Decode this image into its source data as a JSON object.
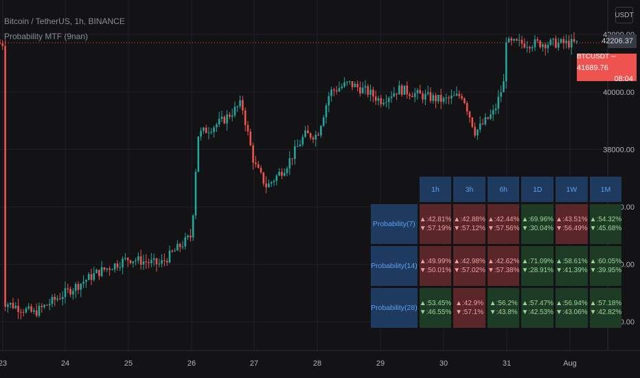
{
  "header": {
    "symbol_line": "Bitcoin / TetherUS, 1h, BINANCE",
    "indicator_line": "Probability MTF (9nan)"
  },
  "currency_button": "USDT",
  "price_tags": {
    "high": "42206.37",
    "symbol": "BTCUSDT",
    "last": "41689.76",
    "countdown": "08:04"
  },
  "colors": {
    "up": "#26a69a",
    "down": "#ef5350",
    "background": "#131316",
    "table_header": "#1e3a5f"
  },
  "table": {
    "timeframes": [
      "1h",
      "3h",
      "6h",
      "1D",
      "1W",
      "1M"
    ],
    "rows": [
      {
        "label": "Probability(7)",
        "cells": [
          {
            "up": "▲:42.81%",
            "down": "▼:57.19%",
            "tone": "red"
          },
          {
            "up": "▲:42.88%",
            "down": "▼:57.12%",
            "tone": "red"
          },
          {
            "up": "▲:42.44%",
            "down": "▼:57.56%",
            "tone": "red"
          },
          {
            "up": "▲:69.96%",
            "down": "▼:30.04%",
            "tone": "green"
          },
          {
            "up": "▲:43.51%",
            "down": "▼:56.49%",
            "tone": "red"
          },
          {
            "up": "▲:54.32%",
            "down": "▼:45.68%",
            "tone": "green"
          }
        ]
      },
      {
        "label": "Probability(14)",
        "cells": [
          {
            "up": "▲:49.99%",
            "down": "▼:50.01%",
            "tone": "red"
          },
          {
            "up": "▲:42.98%",
            "down": "▼:57.02%",
            "tone": "red"
          },
          {
            "up": "▲:42.62%",
            "down": "▼:57.38%",
            "tone": "red"
          },
          {
            "up": "▲:71.09%",
            "down": "▼:28.91%",
            "tone": "green"
          },
          {
            "up": "▲:58.61%",
            "down": "▼:41.39%",
            "tone": "green"
          },
          {
            "up": "▲:60.05%",
            "down": "▼:39.95%",
            "tone": "green"
          }
        ]
      },
      {
        "label": "Probability(28)",
        "cells": [
          {
            "up": "▲:53.45%",
            "down": "▼:46.55%",
            "tone": "green"
          },
          {
            "up": "▲:42.9%",
            "down": "▼:57.1%",
            "tone": "red"
          },
          {
            "up": "▲:56.2%",
            "down": "▼:43.8%",
            "tone": "green"
          },
          {
            "up": "▲:57.47%",
            "down": "▼:42.53%",
            "tone": "green"
          },
          {
            "up": "▲:56.94%",
            "down": "▼:43.06%",
            "tone": "green"
          },
          {
            "up": "▲:57.18%",
            "down": "▼:42.82%",
            "tone": "green"
          }
        ]
      }
    ]
  },
  "chart_data": {
    "type": "candlestick",
    "title": "Bitcoin / TetherUS, 1h, BINANCE",
    "xlabel": "",
    "ylabel": "",
    "x_ticks": [
      "23",
      "24",
      "25",
      "26",
      "27",
      "28",
      "29",
      "30",
      "31",
      "Aug"
    ],
    "y_ticks": [
      "42000.00",
      "40000.00",
      "38000.00",
      "36000.00",
      "34000.00",
      "32000.00"
    ],
    "ylim": [
      31000,
      43200
    ],
    "grid": true,
    "last_price": 41689.76,
    "high_line": 42206.37,
    "series": [
      {
        "name": "BTCUSDT",
        "close_path": [
          [
            "23",
            32700
          ],
          [
            "23.5",
            32300
          ],
          [
            "24",
            33000
          ],
          [
            "24.5",
            33700
          ],
          [
            "25",
            34200
          ],
          [
            "25.5",
            34000
          ],
          [
            "26",
            35000
          ],
          [
            "26.1",
            38500
          ],
          [
            "26.5",
            39000
          ],
          [
            "26.8",
            39600
          ],
          [
            "27",
            37500
          ],
          [
            "27.2",
            36700
          ],
          [
            "27.5",
            37400
          ],
          [
            "27.8",
            38500
          ],
          [
            "28",
            38500
          ],
          [
            "28.2",
            40000
          ],
          [
            "28.5",
            40300
          ],
          [
            "28.8",
            40000
          ],
          [
            "29",
            39700
          ],
          [
            "29.3",
            40100
          ],
          [
            "29.6",
            39900
          ],
          [
            "30",
            39700
          ],
          [
            "30.3",
            39900
          ],
          [
            "30.5",
            38600
          ],
          [
            "30.8",
            39300
          ],
          [
            "30.95",
            40300
          ],
          [
            "31",
            42200
          ],
          [
            "31.3",
            41700
          ],
          [
            "31.6",
            41600
          ],
          [
            "31.9",
            41400
          ],
          [
            "Aug",
            41690
          ]
        ]
      }
    ]
  }
}
